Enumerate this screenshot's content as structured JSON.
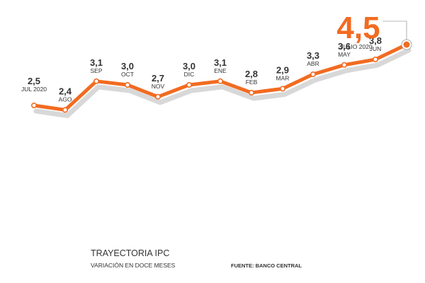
{
  "chart_data": {
    "type": "line",
    "title": "TRAYECTORIA IPC",
    "subtitle": "VARIACIÓN EN DOCE MESES",
    "source": "FUENTE: BANCO CENTRAL",
    "highlight_value": "4,5",
    "highlight_label": "JULIO 2020",
    "categories": [
      "JUL 2020",
      "AGO",
      "SEP",
      "OCT",
      "NOV",
      "DIC",
      "ENE",
      "FEB",
      "MAR",
      "ABR",
      "MAY",
      "JUN",
      "JULIO 2020"
    ],
    "values": [
      2.5,
      2.4,
      3.1,
      3.0,
      2.7,
      3.0,
      3.1,
      2.8,
      2.9,
      3.3,
      3.6,
      3.8,
      4.5
    ],
    "value_labels": [
      "2,5",
      "2,4",
      "3,1",
      "3,0",
      "2,7",
      "3,0",
      "3,1",
      "2,8",
      "2,9",
      "3,3",
      "3,6",
      "3,8",
      "4,5"
    ],
    "grid": false,
    "colors": {
      "line": "#f26b21",
      "shadow": "#d8d8d8",
      "marker_fill": "#ffffff",
      "highlight": "#f26b21",
      "text": "#333333"
    }
  }
}
